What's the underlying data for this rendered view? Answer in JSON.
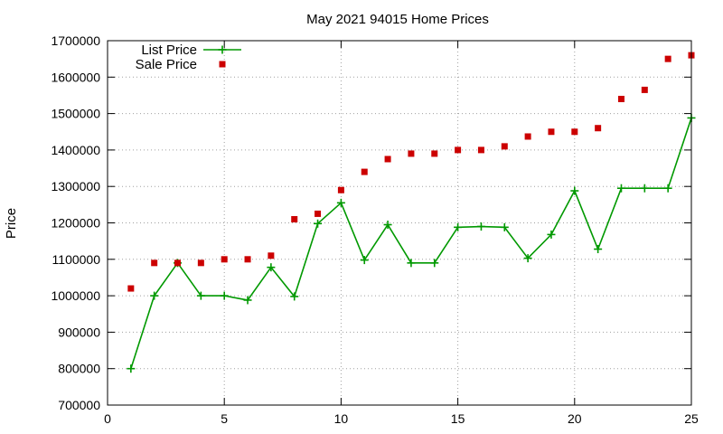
{
  "chart_data": {
    "type": "line",
    "title": "May 2021 94015 Home Prices",
    "xlabel": "",
    "ylabel": "Price",
    "xlim": [
      0,
      25
    ],
    "ylim": [
      700000,
      1700000
    ],
    "xticks": [
      0,
      5,
      10,
      15,
      20,
      25
    ],
    "yticks": [
      700000,
      800000,
      900000,
      1000000,
      1100000,
      1200000,
      1300000,
      1400000,
      1500000,
      1600000,
      1700000
    ],
    "grid": true,
    "legend_position": "top-left",
    "x": [
      1,
      2,
      3,
      4,
      5,
      6,
      7,
      8,
      9,
      10,
      11,
      12,
      13,
      14,
      15,
      16,
      17,
      18,
      19,
      20,
      21,
      22,
      23,
      24,
      25
    ],
    "series": [
      {
        "name": "List Price",
        "style": "line-plus",
        "color": "#009900",
        "values": [
          800000,
          1000000,
          1090000,
          1000000,
          1000000,
          988000,
          1078000,
          998000,
          1198000,
          1255000,
          1098000,
          1195000,
          1090000,
          1090000,
          1188000,
          1190000,
          1188000,
          1103000,
          1168000,
          1288000,
          1128000,
          1295000,
          1295000,
          1295000,
          1488000
        ]
      },
      {
        "name": "Sale Price",
        "style": "square",
        "color": "#cc0000",
        "values": [
          1020000,
          1090000,
          1090000,
          1090000,
          1100000,
          1100000,
          1110000,
          1210000,
          1225000,
          1290000,
          1340000,
          1375000,
          1390000,
          1390000,
          1400000,
          1400000,
          1410000,
          1437000,
          1450000,
          1450000,
          1460000,
          1540000,
          1565000,
          1650000,
          1660000
        ]
      }
    ]
  }
}
